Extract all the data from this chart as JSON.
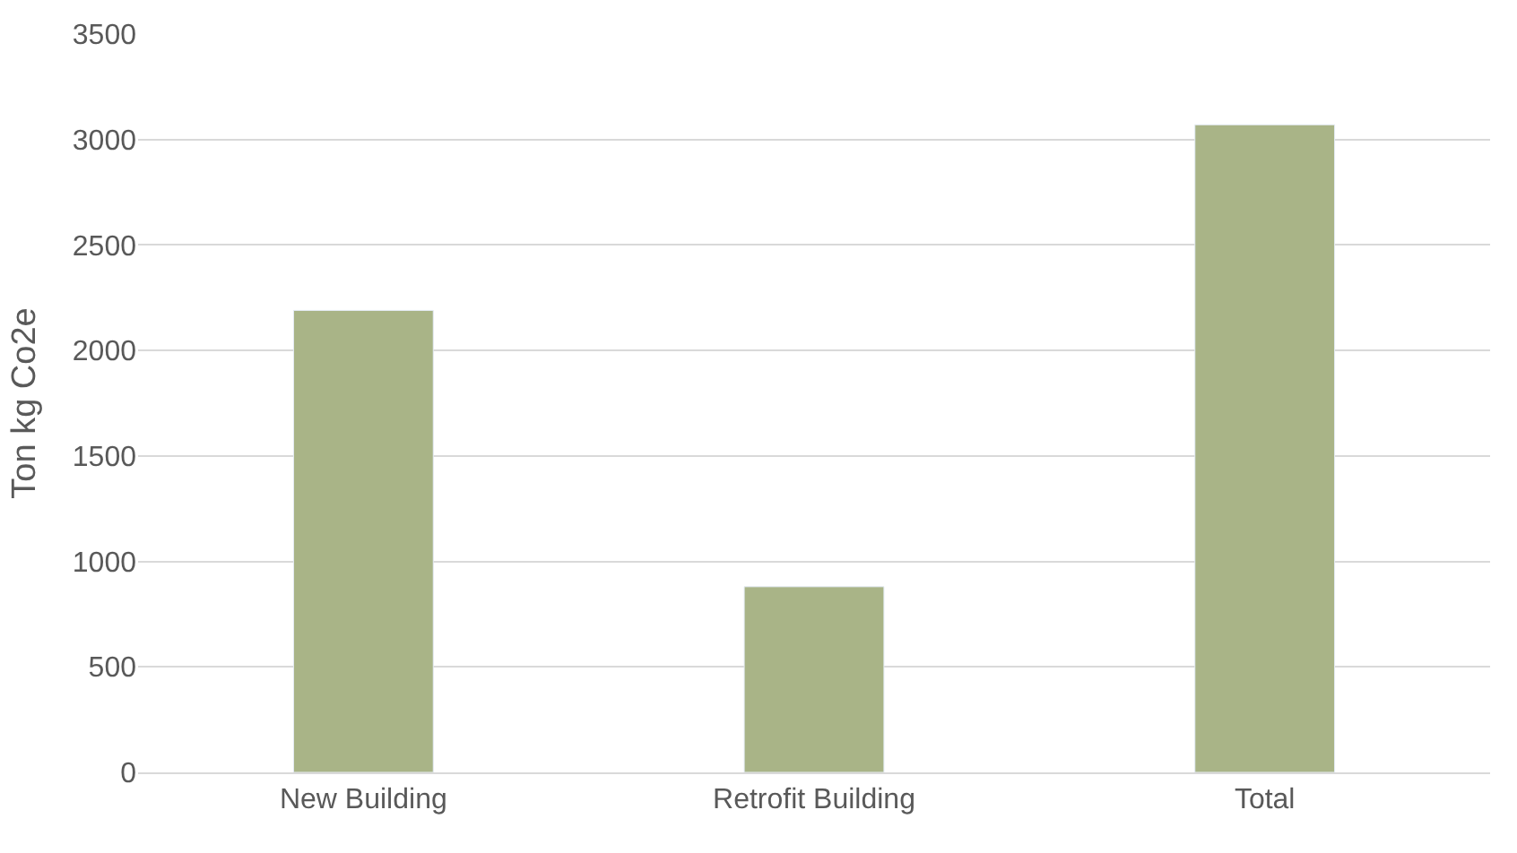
{
  "chart_data": {
    "type": "bar",
    "ylabel": "Ton kg Co2e",
    "categories": [
      "New Building",
      "Retrofit Building",
      "Total"
    ],
    "values": [
      2190,
      880,
      3070
    ],
    "color": "#a9b487",
    "ylim": [
      0,
      3500
    ],
    "yticks": [
      0,
      500,
      1000,
      1500,
      2000,
      2500,
      3000,
      3500
    ],
    "grid": "y",
    "legend": false
  }
}
